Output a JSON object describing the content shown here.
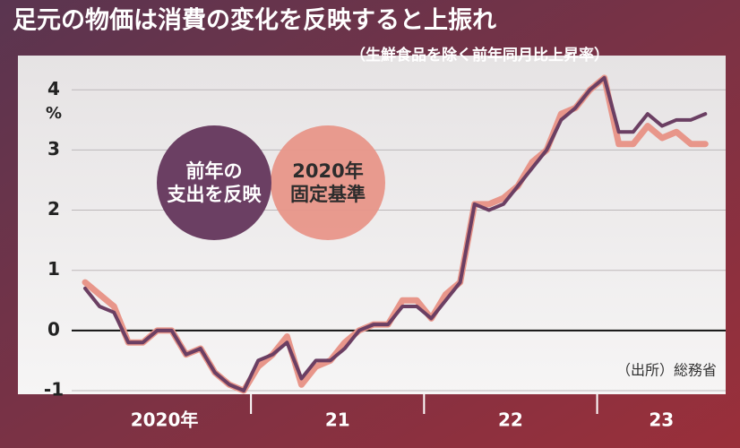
{
  "chart_data": {
    "type": "line",
    "title": "足元の物価は消費の変化を反映すると上振れ",
    "subtitle": "（生鮮食品を除く前年同月比上昇率）",
    "y_unit": "%",
    "source": "（出所）総務省",
    "categories": [
      "2020年",
      null,
      null,
      null,
      null,
      null,
      null,
      null,
      null,
      null,
      null,
      null,
      "21",
      null,
      null,
      null,
      null,
      null,
      null,
      null,
      null,
      null,
      null,
      null,
      "22",
      null,
      null,
      null,
      null,
      null,
      null,
      null,
      null,
      null,
      null,
      null,
      "23",
      null,
      null,
      null,
      null,
      null,
      null,
      null
    ],
    "series": [
      {
        "name": "2020年\n固定基準",
        "color": "#e8968a",
        "values": [
          0.8,
          0.6,
          0.4,
          -0.2,
          -0.2,
          0.0,
          0.0,
          -0.4,
          -0.3,
          -0.7,
          -0.9,
          -1.0,
          -0.6,
          -0.4,
          -0.1,
          -0.9,
          -0.6,
          -0.5,
          -0.2,
          0.0,
          0.1,
          0.1,
          0.5,
          0.5,
          0.2,
          0.6,
          0.8,
          2.1,
          2.1,
          2.2,
          2.4,
          2.8,
          3.0,
          3.6,
          3.7,
          4.0,
          4.2,
          3.1,
          3.1,
          3.4,
          3.2,
          3.3,
          3.1,
          3.1
        ]
      },
      {
        "name": "前年の\n支出を反映",
        "color": "#6b3f63",
        "values": [
          0.7,
          0.4,
          0.3,
          -0.2,
          -0.2,
          0.0,
          0.0,
          -0.4,
          -0.3,
          -0.7,
          -0.9,
          -1.0,
          -0.5,
          -0.4,
          -0.2,
          -0.8,
          -0.5,
          -0.5,
          -0.3,
          0.0,
          0.1,
          0.1,
          0.4,
          0.4,
          0.2,
          0.5,
          0.8,
          2.1,
          2.0,
          2.1,
          2.4,
          2.7,
          3.0,
          3.5,
          3.7,
          4.0,
          4.2,
          3.3,
          3.3,
          3.6,
          3.4,
          3.5,
          3.5,
          3.6
        ]
      }
    ],
    "ylim": [
      -1.06,
      4.57
    ],
    "yticks": [
      -1,
      0,
      1,
      2,
      3,
      4
    ],
    "grid": true
  }
}
